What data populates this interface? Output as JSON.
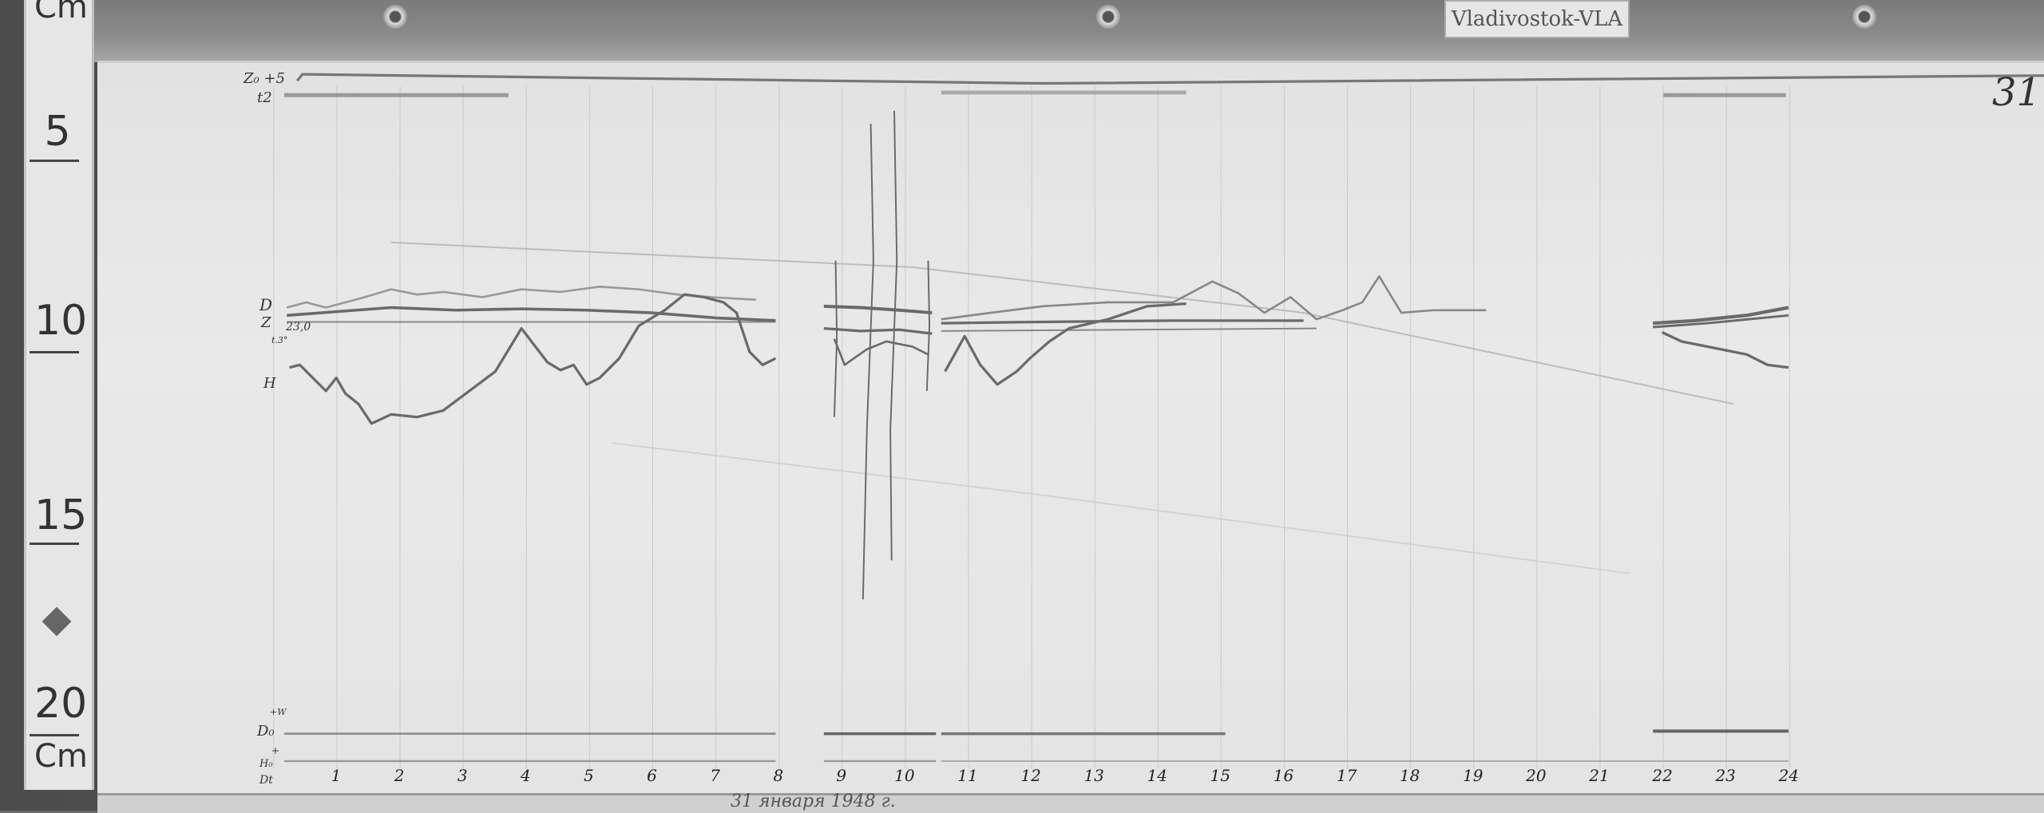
{
  "station_label": "Vladivostok-VLA",
  "sheet_number": "31",
  "ruler": {
    "unit_top": "Cm",
    "unit_bottom": "Cm",
    "marks": [
      "5",
      "10",
      "15",
      "20"
    ]
  },
  "trace_labels": {
    "z0": "Z₀ +5",
    "t2": "t2",
    "d": "D",
    "z": "Z",
    "z_value": "23,0",
    "temp": "t.3°",
    "h": "H",
    "plus_w": "+W",
    "d0": "D₀",
    "plus": "+",
    "h0": "H₀",
    "dt": "Dt"
  },
  "hours": [
    "1",
    "2",
    "3",
    "4",
    "5",
    "6",
    "7",
    "8",
    "9",
    "10",
    "11",
    "12",
    "13",
    "14",
    "15",
    "16",
    "17",
    "18",
    "19",
    "20",
    "21",
    "22",
    "23",
    "24"
  ],
  "date_note": "31 января 1948 г.",
  "colors": {
    "trace": "#6a6a6a",
    "paper": "#e6e6e6",
    "ink": "#333333"
  }
}
